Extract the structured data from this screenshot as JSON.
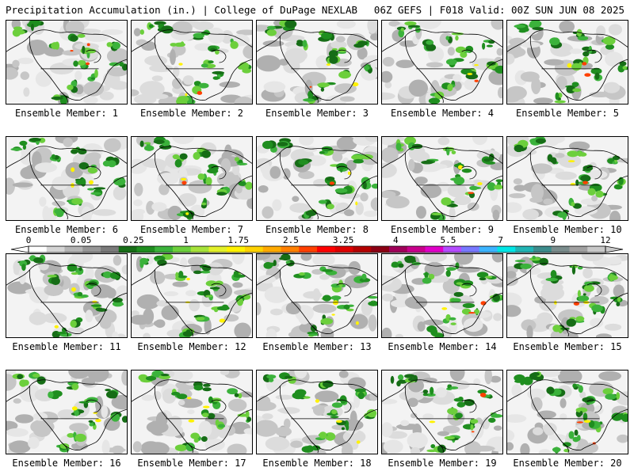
{
  "header": {
    "left": "Precipitation Accumulation (in.) | College of DuPage NEXLAB",
    "right": "06Z GEFS | F018 Valid: 00Z SUN JUN 08 2025"
  },
  "member_label_prefix": "Ensemble Member:",
  "members": [
    1,
    2,
    3,
    4,
    5,
    6,
    7,
    8,
    9,
    10,
    11,
    12,
    13,
    14,
    15,
    16,
    17,
    18,
    19,
    20
  ],
  "scale": {
    "labels": [
      "0",
      "0.05",
      "0.25",
      "1",
      "1.75",
      "2.5",
      "3.25",
      "4",
      "5.5",
      "7",
      "9",
      "12"
    ],
    "colors": [
      "#ffffff",
      "#d4d4d4",
      "#b4b4b4",
      "#969696",
      "#7a7a7a",
      "#166d16",
      "#1f8e1f",
      "#3bb23b",
      "#6ccf3c",
      "#a6e23a",
      "#e2f02a",
      "#fff200",
      "#ffd200",
      "#ffaa00",
      "#ff8000",
      "#ff4000",
      "#ff0000",
      "#dd0000",
      "#b40000",
      "#8c0014",
      "#a0005a",
      "#c8008c",
      "#e000c8",
      "#b44cff",
      "#7878ff",
      "#3cb4ff",
      "#00e6e6",
      "#22b4b4",
      "#3c8c8c",
      "#7a8c8c",
      "#a0a0a0",
      "#c8c8c8"
    ]
  }
}
